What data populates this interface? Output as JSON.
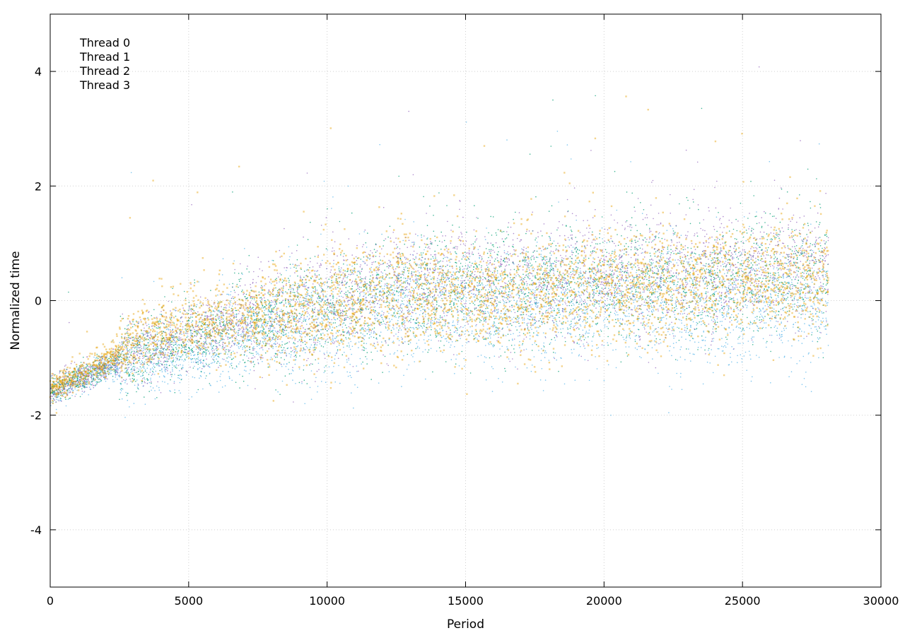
{
  "chart_data": {
    "type": "scatter",
    "title": "",
    "xlabel": "Period",
    "ylabel": "Normalized time",
    "xlim": [
      0,
      30000
    ],
    "ylim": [
      -5,
      5
    ],
    "xticks": [
      0,
      5000,
      10000,
      15000,
      20000,
      25000,
      30000
    ],
    "yticks": [
      -4,
      -2,
      0,
      2,
      4
    ],
    "xtick_labels": [
      "0",
      "5000",
      "10000",
      "15000",
      "20000",
      "25000",
      "30000"
    ],
    "ytick_labels": [
      "-4",
      "-2",
      "0",
      "2",
      "4"
    ],
    "grid": true,
    "legend_position": "top-left",
    "series": [
      {
        "name": "Thread 0",
        "color": "#9467bd",
        "marker": "dot",
        "trend": [
          [
            0,
            -1.62
          ],
          [
            1000,
            -1.35
          ],
          [
            2000,
            -1.15
          ],
          [
            3000,
            -0.9
          ],
          [
            4000,
            -0.75
          ],
          [
            5000,
            -0.6
          ],
          [
            6000,
            -0.5
          ],
          [
            7000,
            -0.35
          ],
          [
            8000,
            -0.25
          ],
          [
            9000,
            -0.15
          ],
          [
            10000,
            -0.05
          ],
          [
            12000,
            0.15
          ],
          [
            14000,
            0.3
          ],
          [
            16000,
            0.3
          ],
          [
            18000,
            0.35
          ],
          [
            20000,
            0.45
          ],
          [
            22000,
            0.5
          ],
          [
            24000,
            0.5
          ],
          [
            26000,
            0.55
          ],
          [
            28000,
            0.6
          ]
        ]
      },
      {
        "name": "Thread 1",
        "color": "#009e73",
        "marker": "dot",
        "trend": [
          [
            0,
            -1.6
          ],
          [
            1000,
            -1.35
          ],
          [
            2000,
            -1.15
          ],
          [
            3000,
            -0.95
          ],
          [
            4000,
            -0.8
          ],
          [
            5000,
            -0.65
          ],
          [
            6000,
            -0.55
          ],
          [
            7000,
            -0.4
          ],
          [
            8000,
            -0.3
          ],
          [
            9000,
            -0.2
          ],
          [
            10000,
            -0.1
          ],
          [
            12000,
            0.1
          ],
          [
            14000,
            0.2
          ],
          [
            16000,
            0.25
          ],
          [
            18000,
            0.3
          ],
          [
            20000,
            0.35
          ],
          [
            22000,
            0.4
          ],
          [
            24000,
            0.4
          ],
          [
            26000,
            0.45
          ],
          [
            28000,
            0.5
          ]
        ]
      },
      {
        "name": "Thread 2",
        "color": "#56b4e9",
        "marker": "dot",
        "trend": [
          [
            0,
            -1.65
          ],
          [
            1000,
            -1.4
          ],
          [
            2000,
            -1.2
          ],
          [
            3000,
            -1.1
          ],
          [
            4000,
            -1.0
          ],
          [
            5000,
            -0.9
          ],
          [
            6000,
            -0.75
          ],
          [
            7000,
            -0.6
          ],
          [
            8000,
            -0.5
          ],
          [
            9000,
            -0.4
          ],
          [
            10000,
            -0.3
          ],
          [
            12000,
            -0.15
          ],
          [
            14000,
            -0.1
          ],
          [
            16000,
            -0.1
          ],
          [
            18000,
            -0.15
          ],
          [
            20000,
            -0.1
          ],
          [
            22000,
            -0.1
          ],
          [
            24000,
            -0.15
          ],
          [
            26000,
            -0.1
          ],
          [
            28000,
            -0.05
          ]
        ]
      },
      {
        "name": "Thread 3",
        "color": "#e69f00",
        "marker": "square",
        "trend": [
          [
            0,
            -1.55
          ],
          [
            1000,
            -1.3
          ],
          [
            2000,
            -1.05
          ],
          [
            3000,
            -0.7
          ],
          [
            4000,
            -0.5
          ],
          [
            5000,
            -0.45
          ],
          [
            6000,
            -0.4
          ],
          [
            7000,
            -0.3
          ],
          [
            8000,
            -0.2
          ],
          [
            9000,
            -0.15
          ],
          [
            10000,
            -0.1
          ],
          [
            12000,
            0.05
          ],
          [
            14000,
            0.1
          ],
          [
            16000,
            0.05
          ],
          [
            18000,
            0.2
          ],
          [
            20000,
            0.25
          ],
          [
            22000,
            0.2
          ],
          [
            24000,
            0.3
          ],
          [
            26000,
            0.35
          ],
          [
            28000,
            0.4
          ]
        ]
      }
    ]
  }
}
